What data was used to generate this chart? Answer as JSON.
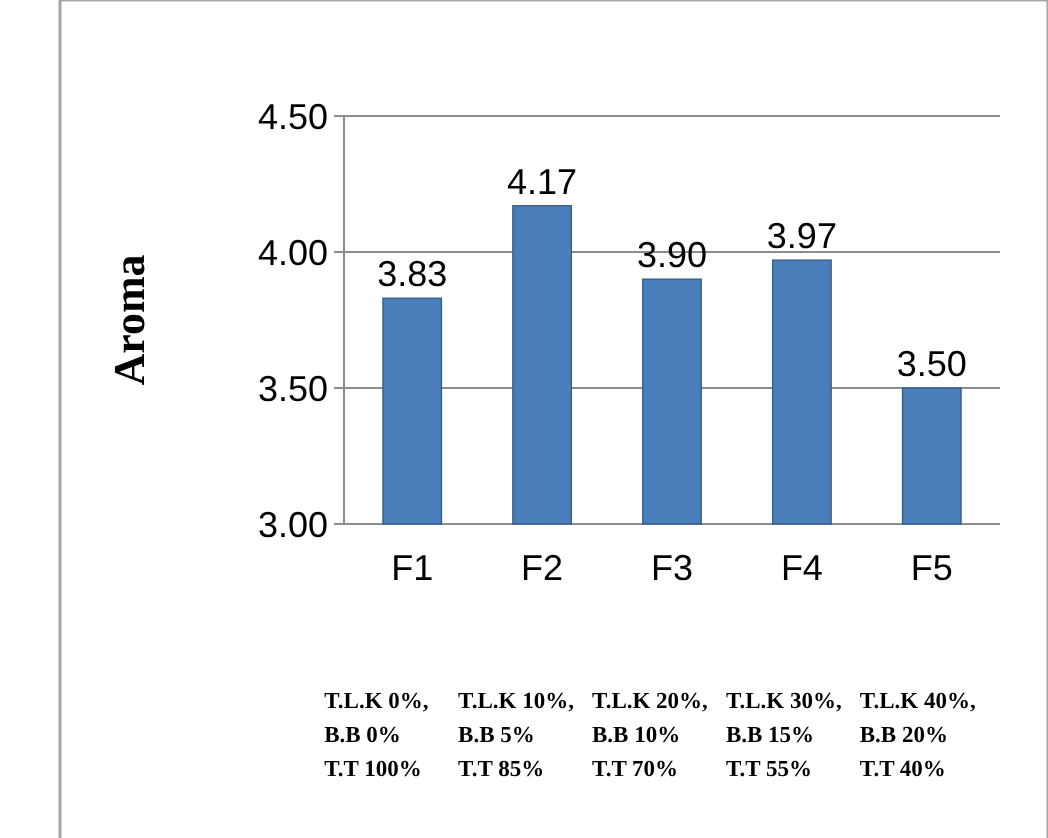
{
  "chart_data": {
    "type": "bar",
    "ylabel": "Aroma",
    "categories": [
      "F1",
      "F2",
      "F3",
      "F4",
      "F5"
    ],
    "values": [
      3.83,
      4.17,
      3.9,
      3.97,
      3.5
    ],
    "color": "#4a7ebb",
    "ylim": [
      3,
      4.5
    ],
    "yticks": [
      {
        "value": 3,
        "label": "3.00"
      },
      {
        "value": 3.5,
        "label": "3.50"
      },
      {
        "value": 4,
        "label": "4.00"
      },
      {
        "value": 4.5,
        "label": "4.50"
      }
    ],
    "grid": "y",
    "value_labels": [
      "3.83",
      "4.17",
      "3.90",
      "3.97",
      "3.50"
    ],
    "annotations": [
      "T.L.K 0%,\nB.B 0%\nT.T 100%",
      "T.L.K 10%,\nB.B 5%\nT.T 85%",
      "T.L.K 20%,\nB.B 10%\nT.T 70%",
      "T.L.K 30%,\nB.B 15%\nT.T 55%",
      "T.L.K 40%,\nB.B 20%\nT.T 40%"
    ]
  }
}
